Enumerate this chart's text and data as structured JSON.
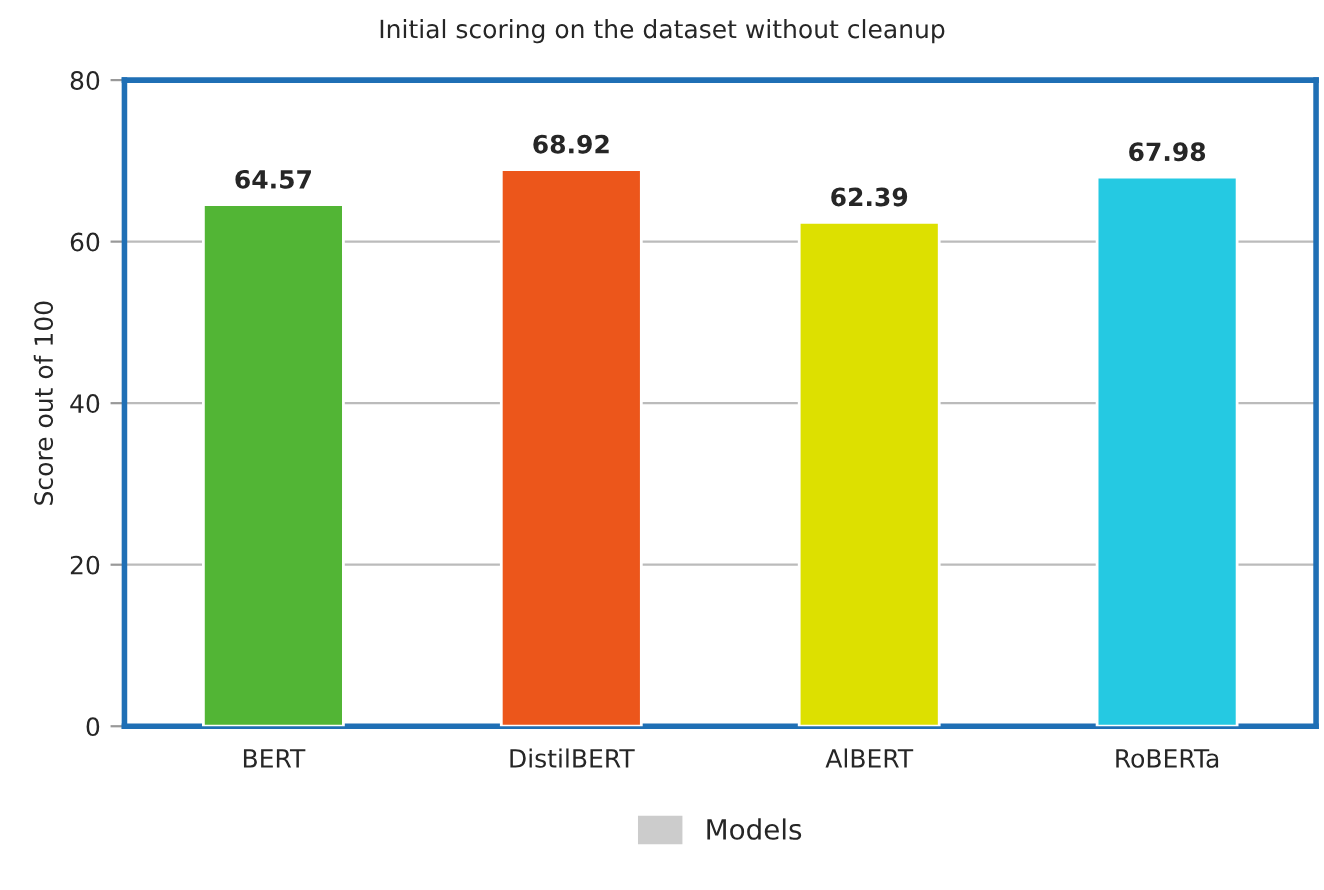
{
  "chart_data": {
    "type": "bar",
    "title": "Initial scoring on the dataset without cleanup",
    "ylabel": "Score out of 100",
    "categories": [
      "BERT",
      "DistilBERT",
      "AlBERT",
      "RoBERTa"
    ],
    "series": [
      {
        "name": "Models",
        "color": "#cccccc",
        "colors": [
          "#52b535",
          "#ec561b",
          "#dde000",
          "#25c9e2"
        ],
        "values": [
          64.57,
          68.92,
          62.39,
          67.98
        ]
      }
    ],
    "ylim": [
      0,
      80
    ],
    "yticks": [
      0,
      20,
      40,
      60,
      80
    ],
    "grid": "y",
    "legend": "bottom",
    "data_labels": true
  }
}
